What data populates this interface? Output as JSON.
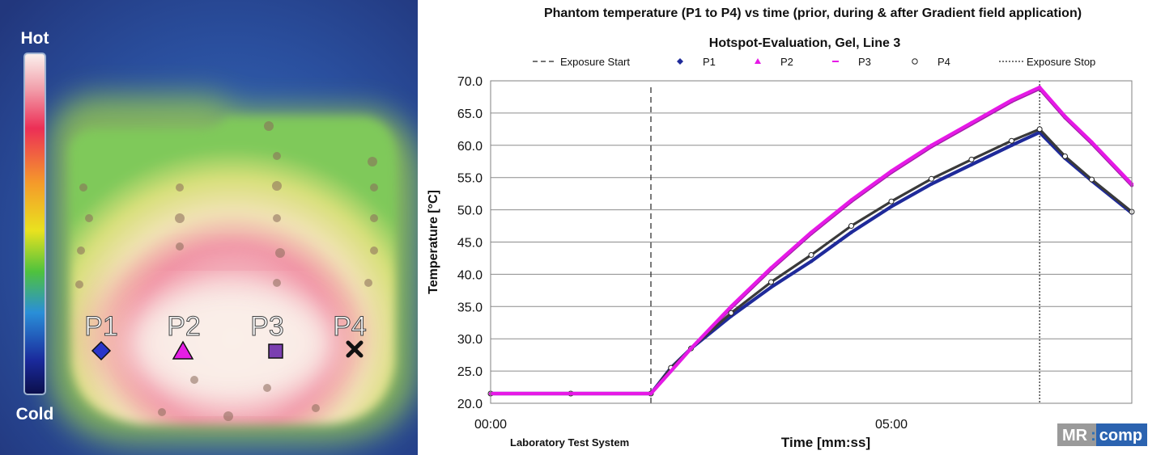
{
  "thermal": {
    "scale_hot": "Hot",
    "scale_cold": "Cold",
    "points": [
      {
        "label": "P1",
        "marker": "diamond",
        "color": "#2b35c9"
      },
      {
        "label": "P2",
        "marker": "triangle",
        "color": "#e51ee5"
      },
      {
        "label": "P3",
        "marker": "square",
        "color": "#7a3fb0"
      },
      {
        "label": "P4",
        "marker": "cross",
        "color": "#111111"
      }
    ]
  },
  "chart_data": {
    "type": "scatter",
    "title": "Phantom temperature (P1 to P4) vs time (prior, during & after Gradient field application)",
    "subtitle": "Hotspot-Evaluation,  Gel, Line 3",
    "xlabel": "Time [mm:ss]",
    "ylabel": "Temperature [°C]",
    "x_unit": "seconds",
    "xlim": [
      0,
      480
    ],
    "ylim": [
      20,
      70
    ],
    "y_ticks": [
      "20.0",
      "25.0",
      "30.0",
      "35.0",
      "40.0",
      "45.0",
      "50.0",
      "55.0",
      "60.0",
      "65.0",
      "70.0"
    ],
    "y_tick_values": [
      20,
      25,
      30,
      35,
      40,
      45,
      50,
      55,
      60,
      65,
      70
    ],
    "x_ticks": [
      "00:00",
      "05:00"
    ],
    "x_tick_values": [
      0,
      300
    ],
    "grid": "horizontal",
    "exposure_start": 120,
    "exposure_stop": 411,
    "legend": [
      {
        "name": "Exposure Start",
        "style": "dashed"
      },
      {
        "name": "P1",
        "style": "marker"
      },
      {
        "name": "P2",
        "style": "marker"
      },
      {
        "name": "P3",
        "style": "marker"
      },
      {
        "name": "P4",
        "style": "marker"
      },
      {
        "name": "Exposure Stop",
        "style": "dotted"
      }
    ],
    "series": [
      {
        "name": "P1",
        "color": "#1f2a9a",
        "x": [
          0,
          60,
          120,
          135,
          150,
          180,
          210,
          240,
          270,
          300,
          330,
          360,
          390,
          411,
          430,
          450,
          480
        ],
        "y": [
          21.5,
          21.5,
          21.5,
          25.5,
          28.5,
          33.5,
          38.0,
          42.0,
          46.5,
          50.5,
          54.0,
          57.0,
          60.0,
          62.0,
          58.0,
          54.5,
          49.5
        ]
      },
      {
        "name": "P2",
        "color": "#e619e6",
        "x": [
          0,
          60,
          120,
          135,
          150,
          180,
          210,
          240,
          270,
          300,
          330,
          360,
          390,
          411,
          430,
          450,
          480
        ],
        "y": [
          21.5,
          21.5,
          21.5,
          25.0,
          28.5,
          35.0,
          41.0,
          46.5,
          51.5,
          56.0,
          60.0,
          63.5,
          67.0,
          69.0,
          64.5,
          60.5,
          54.0
        ]
      },
      {
        "name": "P3",
        "color": "#a21fa8",
        "x": [
          0,
          60,
          120,
          135,
          150,
          180,
          210,
          240,
          270,
          300,
          330,
          360,
          390,
          411,
          430,
          450,
          480
        ],
        "y": [
          21.5,
          21.5,
          21.5,
          25.0,
          28.5,
          34.8,
          40.8,
          46.3,
          51.3,
          55.8,
          59.8,
          63.3,
          66.8,
          68.8,
          64.3,
          60.3,
          53.8
        ]
      },
      {
        "name": "P4",
        "color": "#3a3a3a",
        "x": [
          0,
          60,
          120,
          135,
          150,
          180,
          210,
          240,
          270,
          300,
          330,
          360,
          390,
          411,
          430,
          450,
          480
        ],
        "y": [
          21.5,
          21.5,
          21.5,
          25.5,
          28.5,
          34.0,
          38.8,
          43.0,
          47.5,
          51.3,
          54.8,
          57.8,
          60.7,
          62.5,
          58.3,
          54.7,
          49.7
        ]
      }
    ]
  },
  "footer": {
    "system_label": "Laboratory  Test System",
    "logo_mr": "MR",
    "logo_sep": ":",
    "logo_comp": "comp"
  }
}
